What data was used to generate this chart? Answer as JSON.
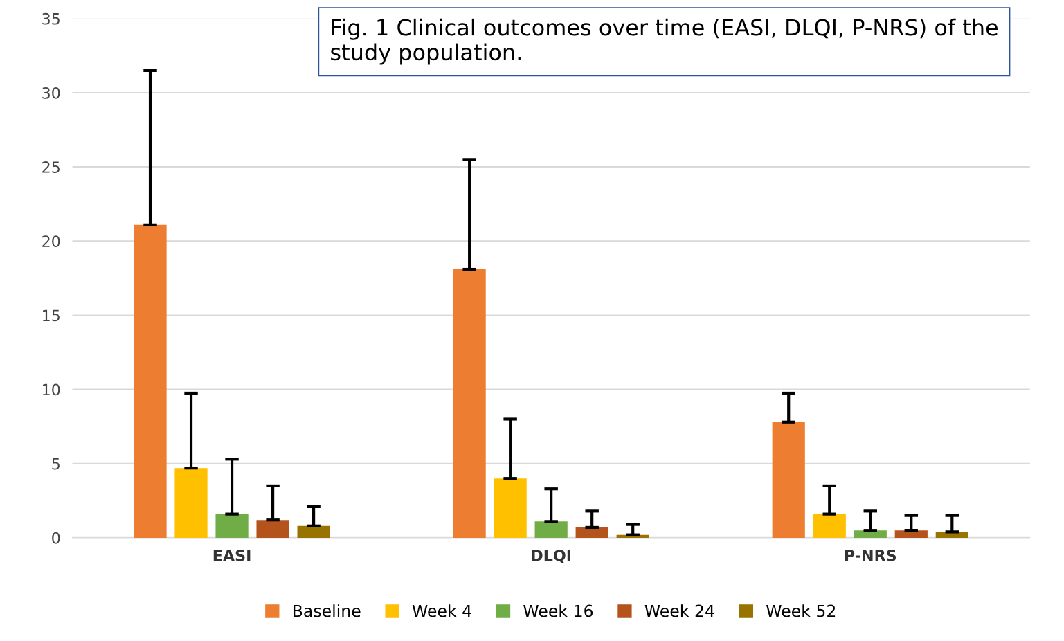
{
  "chart_data": {
    "type": "bar",
    "title": "Fig. 1 Clinical outcomes over time (EASI, DLQI, P-NRS) of the study population.",
    "categories": [
      "EASI",
      "DLQI",
      "P-NRS"
    ],
    "series": [
      {
        "name": "Baseline",
        "color": "#ed7d31",
        "values": [
          21.1,
          18.1,
          7.8
        ],
        "errors": [
          [
            21.1,
            31.5
          ],
          [
            18.1,
            25.5
          ],
          [
            7.8,
            9.75
          ]
        ]
      },
      {
        "name": "Week 4",
        "color": "#ffc000",
        "values": [
          4.7,
          4.0,
          1.6
        ],
        "errors": [
          [
            4.7,
            9.75
          ],
          [
            4.0,
            8.0
          ],
          [
            1.6,
            3.5
          ]
        ]
      },
      {
        "name": "Week 16",
        "color": "#70ad47",
        "values": [
          1.6,
          1.1,
          0.5
        ],
        "errors": [
          [
            1.6,
            5.3
          ],
          [
            1.1,
            3.3
          ],
          [
            0.5,
            1.8
          ]
        ]
      },
      {
        "name": "Week 24",
        "color": "#b4531b",
        "values": [
          1.2,
          0.7,
          0.5
        ],
        "errors": [
          [
            1.2,
            3.5
          ],
          [
            0.7,
            1.8
          ],
          [
            0.5,
            1.5
          ]
        ]
      },
      {
        "name": "Week 52",
        "color": "#997300",
        "values": [
          0.8,
          0.2,
          0.4
        ],
        "errors": [
          [
            0.8,
            2.1
          ],
          [
            0.2,
            0.9
          ],
          [
            0.4,
            1.5
          ]
        ]
      }
    ],
    "ylim": [
      0,
      35
    ],
    "yticks": [
      0,
      5,
      10,
      15,
      20,
      25,
      30,
      35
    ],
    "grid": "y",
    "legend": "bottom"
  }
}
